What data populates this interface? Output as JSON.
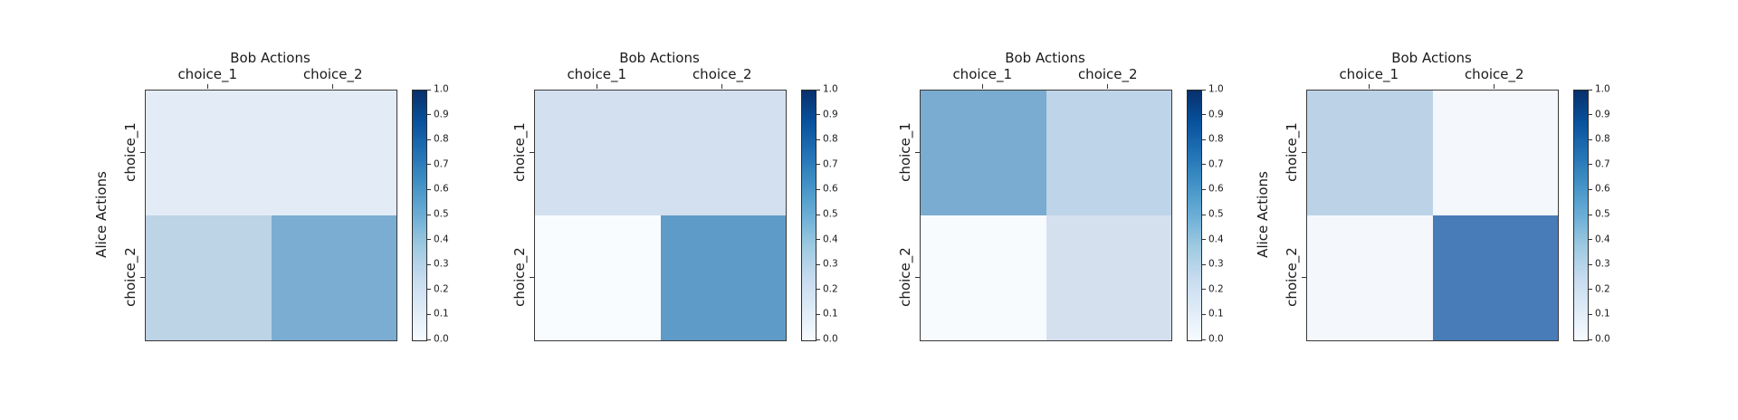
{
  "figure": {
    "background_color": "#ffffff",
    "text_color": "#1a1a1a",
    "spine_color": "#3a3a3a"
  },
  "colormap": {
    "name": "Blues",
    "stops_top_to_bottom": [
      "#08306b",
      "#08519c",
      "#2171b5",
      "#4292c6",
      "#6baed6",
      "#9ecae1",
      "#c6dbef",
      "#deebf7",
      "#f7fbff"
    ]
  },
  "colorbar": {
    "tick_labels": [
      "1.0",
      "0.9",
      "0.8",
      "0.7",
      "0.6",
      "0.5",
      "0.4",
      "0.3",
      "0.2",
      "0.1",
      "0.0"
    ],
    "range": [
      0.0,
      1.0
    ]
  },
  "chart_data": [
    {
      "type": "heatmap",
      "xlabel": "Bob Actions",
      "ylabel": "Alice Actions",
      "x_categories": [
        "choice_1",
        "choice_2"
      ],
      "y_categories": [
        "choice_1",
        "choice_2"
      ],
      "values": [
        [
          0.1,
          0.1
        ],
        [
          0.3,
          0.5
        ]
      ],
      "cell_colors": [
        [
          "#e3ecf6",
          "#e3ecf6"
        ],
        [
          "#bdd3e6",
          "#7badd2"
        ]
      ],
      "colorbar_range": [
        0.0,
        1.0
      ]
    },
    {
      "type": "heatmap",
      "xlabel": "Bob Actions",
      "ylabel": "",
      "x_categories": [
        "choice_1",
        "choice_2"
      ],
      "y_categories": [
        "choice_1",
        "choice_2"
      ],
      "values": [
        [
          0.2,
          0.2
        ],
        [
          0.0,
          0.6
        ]
      ],
      "cell_colors": [
        [
          "#d3e0ef",
          "#d3e0ef"
        ],
        [
          "#f9fcfe",
          "#5e9bc8"
        ]
      ],
      "colorbar_range": [
        0.0,
        1.0
      ]
    },
    {
      "type": "heatmap",
      "xlabel": "Bob Actions",
      "ylabel": "",
      "x_categories": [
        "choice_1",
        "choice_2"
      ],
      "y_categories": [
        "choice_1",
        "choice_2"
      ],
      "values": [
        [
          0.5,
          0.3
        ],
        [
          0.0,
          0.2
        ]
      ],
      "cell_colors": [
        [
          "#7aabd0",
          "#bed4e8"
        ],
        [
          "#f8fbfe",
          "#d5e0ef"
        ]
      ],
      "colorbar_range": [
        0.0,
        1.0
      ]
    },
    {
      "type": "heatmap",
      "xlabel": "Bob Actions",
      "ylabel": "Alice Actions",
      "x_categories": [
        "choice_1",
        "choice_2"
      ],
      "y_categories": [
        "choice_1",
        "choice_2"
      ],
      "values": [
        [
          0.3,
          0.0
        ],
        [
          0.0,
          0.7
        ]
      ],
      "cell_colors": [
        [
          "#bcd3e7",
          "#f4f8fd"
        ],
        [
          "#f4f8fd",
          "#477cb8"
        ]
      ],
      "colorbar_range": [
        0.0,
        1.0
      ]
    }
  ]
}
